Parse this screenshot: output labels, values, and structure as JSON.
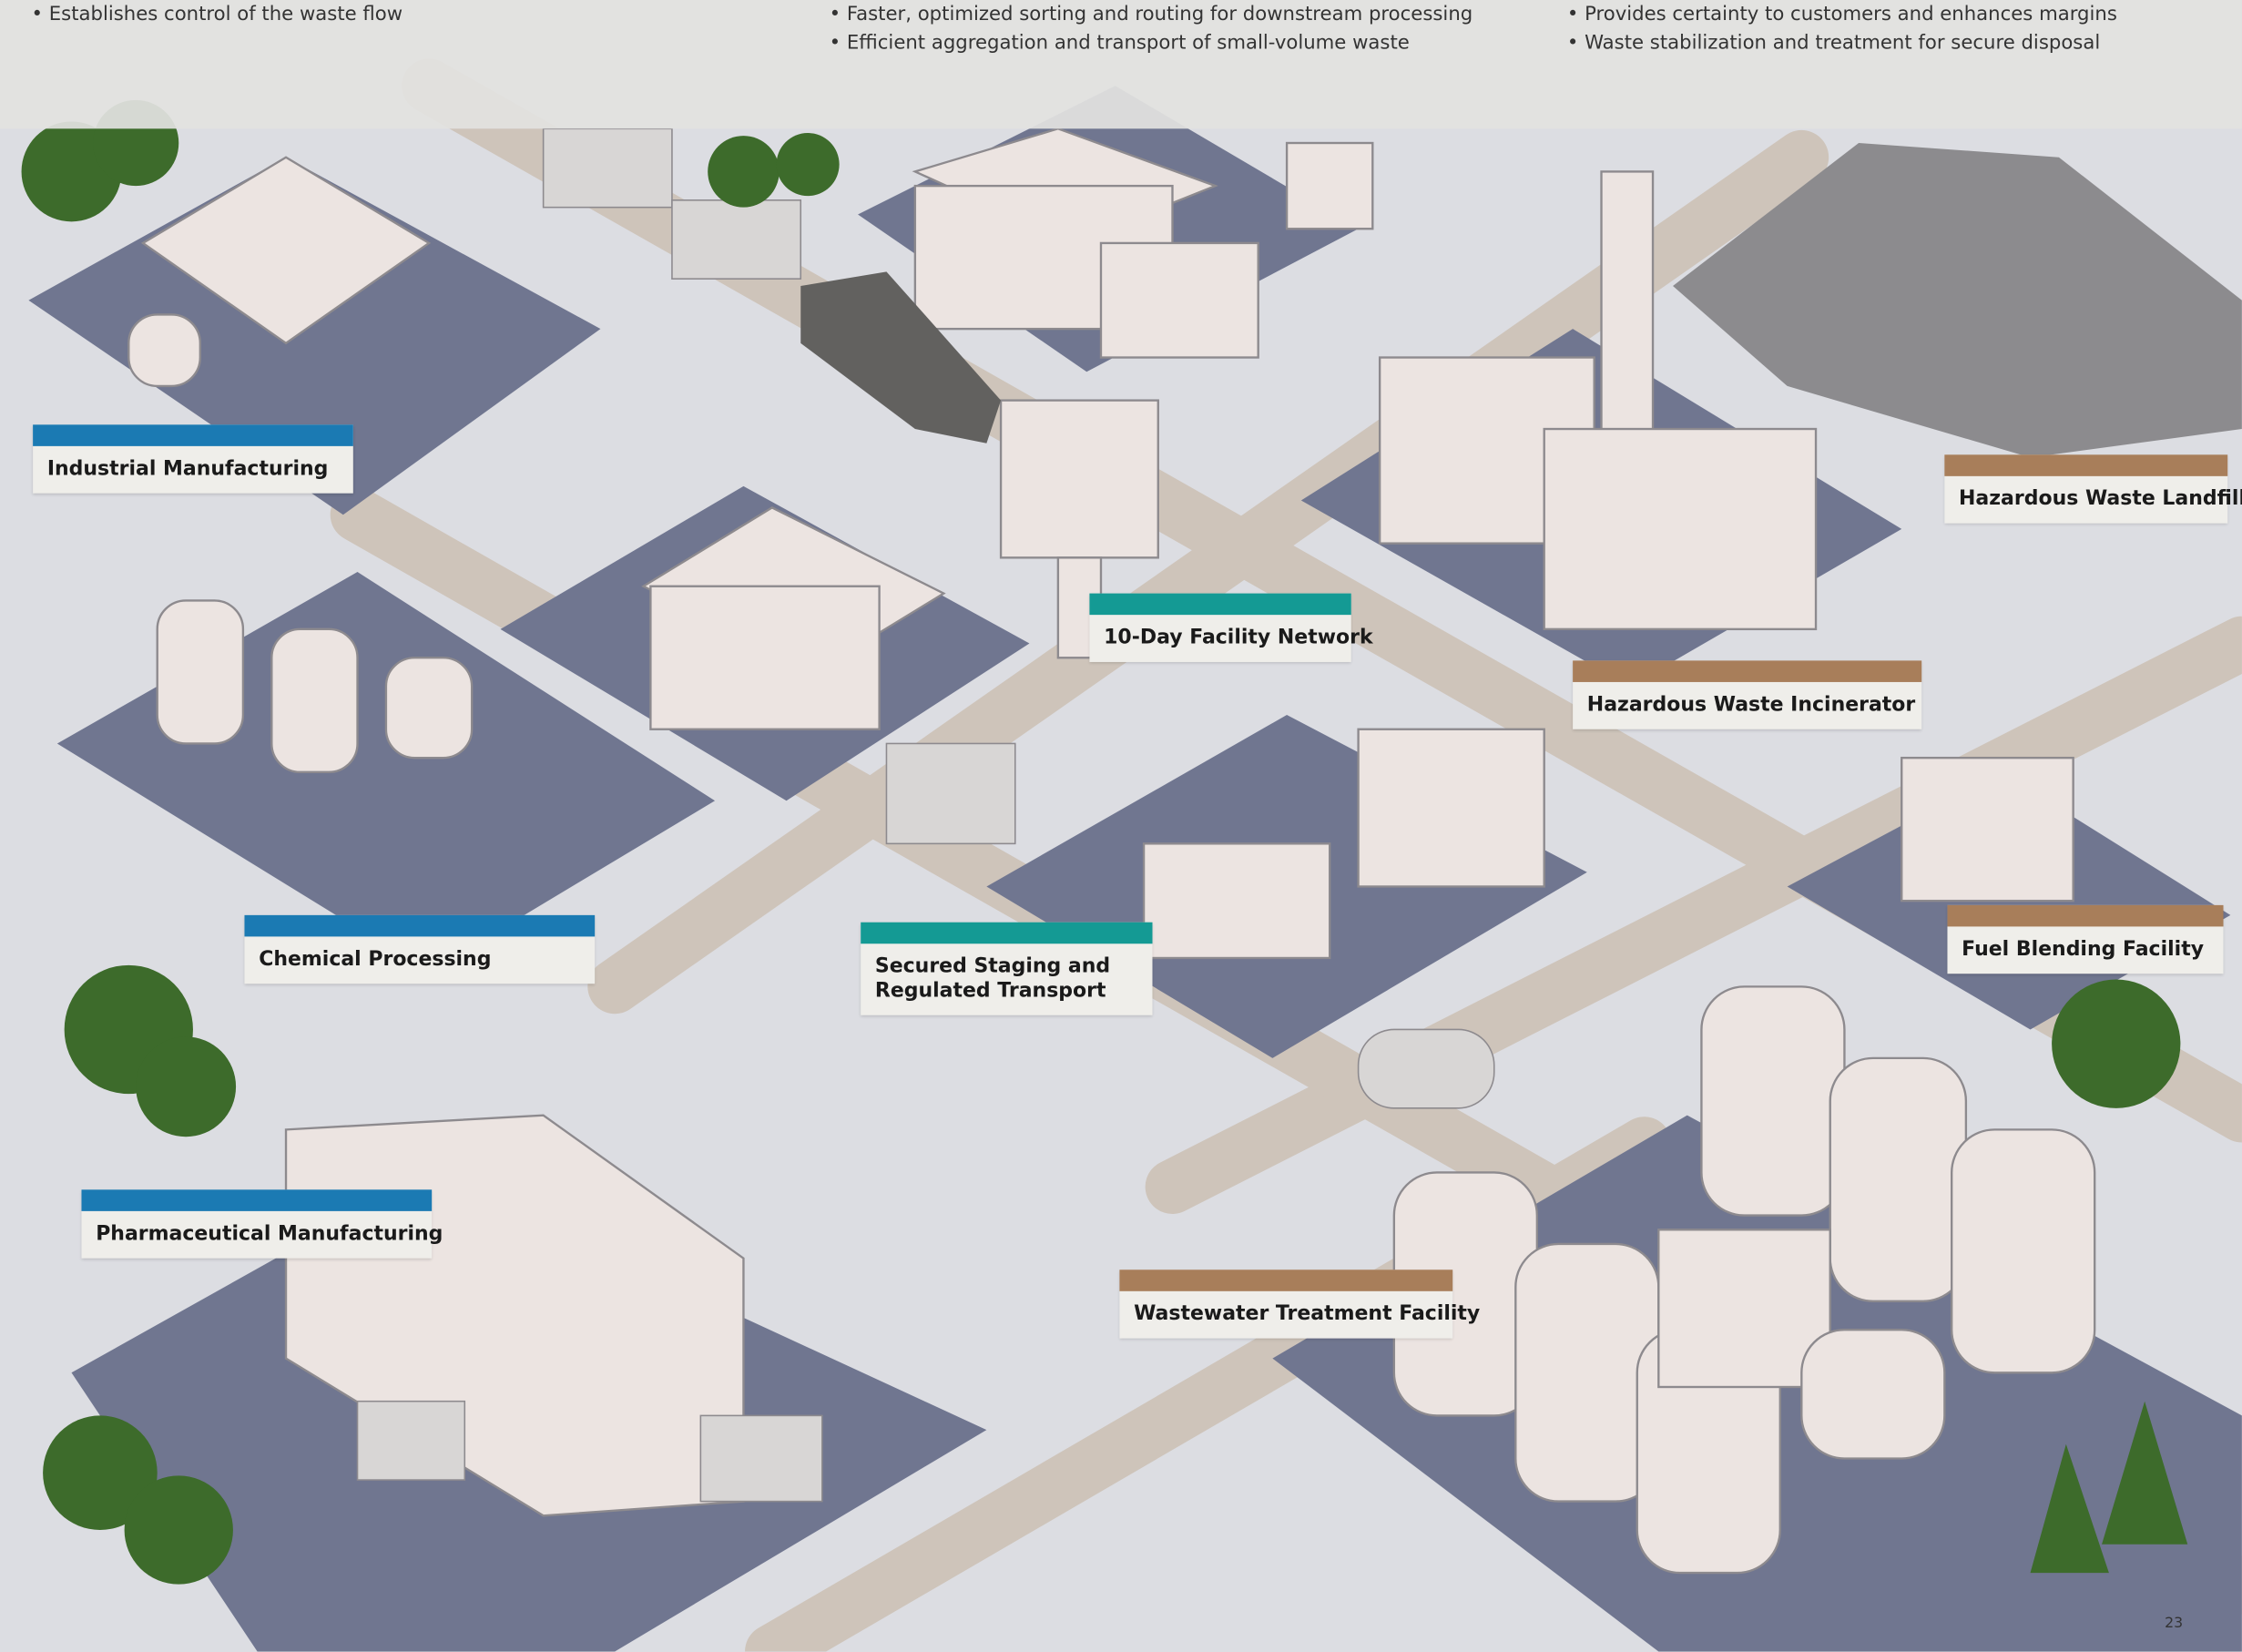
{
  "header": {
    "columns": [
      {
        "bullets": [
          "• Establishes control of the waste flow"
        ]
      },
      {
        "bullets": [
          "• Faster, optimized sorting and routing for downstream processing",
          "• Efficient aggregation and transport of small-volume waste"
        ]
      },
      {
        "bullets": [
          "• Provides certainty to customers and enhances margins",
          "• Waste stabilization and treatment for secure disposal"
        ]
      }
    ]
  },
  "labels": [
    {
      "lines": [
        "Industrial Manufacturing"
      ]
    },
    {
      "lines": [
        "Chemical Processing"
      ]
    },
    {
      "lines": [
        "Pharmaceutical Manufacturing"
      ]
    },
    {
      "lines": [
        "10-Day Facility Network"
      ]
    },
    {
      "lines": [
        "Secured Staging and",
        "Regulated Transport"
      ]
    },
    {
      "lines": [
        "Hazardous Waste Incinerator"
      ]
    },
    {
      "lines": [
        "Hazardous Waste Landfill"
      ]
    },
    {
      "lines": [
        "Fuel Blending Facility"
      ]
    },
    {
      "lines": [
        "Wastewater Treatment Facility"
      ]
    }
  ],
  "page_number": "23"
}
